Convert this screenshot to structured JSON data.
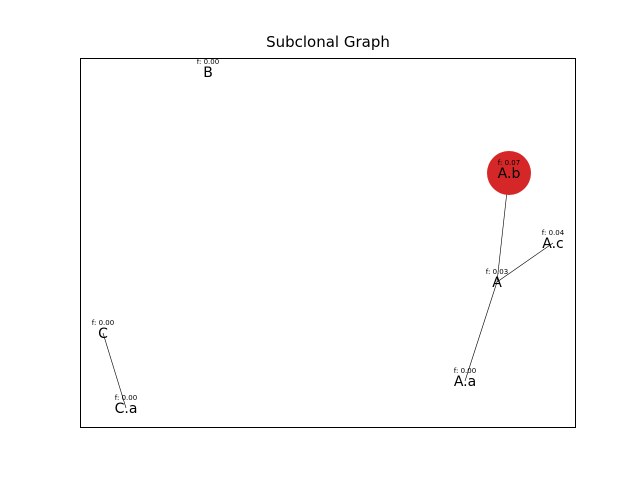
{
  "title": "Subclonal Graph",
  "colors": {
    "highlight_node": "#d62728",
    "edge": "#000000",
    "frame": "#000000"
  },
  "nodes": [
    {
      "id": "A",
      "label": "A",
      "freq": "f: 0.03",
      "highlight": false
    },
    {
      "id": "A.a",
      "label": "A.a",
      "freq": "f: 0.00",
      "highlight": false
    },
    {
      "id": "A.b",
      "label": "A.b",
      "freq": "f: 0.07",
      "highlight": true
    },
    {
      "id": "A.c",
      "label": "A.c",
      "freq": "f: 0.04",
      "highlight": false
    },
    {
      "id": "B",
      "label": "B",
      "freq": "f: 0.00",
      "highlight": false
    },
    {
      "id": "C",
      "label": "C",
      "freq": "f: 0.00",
      "highlight": false
    },
    {
      "id": "C.a",
      "label": "C.a",
      "freq": "f: 0.00",
      "highlight": false
    }
  ],
  "edges": [
    {
      "source": "A",
      "target": "A.b"
    },
    {
      "source": "A",
      "target": "A.a"
    },
    {
      "source": "A",
      "target": "A.c"
    },
    {
      "source": "C",
      "target": "C.a"
    }
  ]
}
